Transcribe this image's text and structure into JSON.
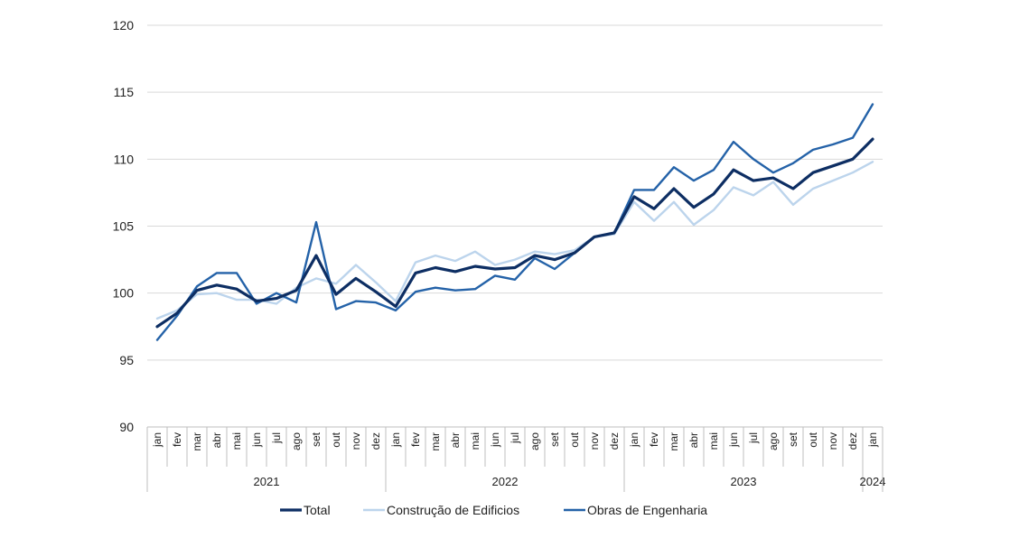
{
  "chart_data": {
    "type": "line",
    "title": "",
    "xlabel": "",
    "ylabel": "",
    "ylim": [
      90,
      120
    ],
    "yticks": [
      "90",
      "95",
      "100",
      "105",
      "110",
      "115",
      "120"
    ],
    "grid": true,
    "legend_position": "bottom",
    "categories": [
      "jan",
      "fev",
      "mar",
      "abr",
      "mai",
      "jun",
      "jul",
      "ago",
      "set",
      "out",
      "nov",
      "dez",
      "jan",
      "fev",
      "mar",
      "abr",
      "mai",
      "jun",
      "jul",
      "ago",
      "set",
      "out",
      "nov",
      "dez",
      "jan",
      "fev",
      "mar",
      "abr",
      "mai",
      "jun",
      "jul",
      "ago",
      "set",
      "out",
      "nov",
      "dez",
      "jan"
    ],
    "years": [
      {
        "label": "2021",
        "start": 0,
        "end": 11
      },
      {
        "label": "2022",
        "start": 12,
        "end": 23
      },
      {
        "label": "2023",
        "start": 24,
        "end": 35
      },
      {
        "label": "2024",
        "start": 36,
        "end": 36
      }
    ],
    "series": [
      {
        "name": "Total",
        "color": "#0d2e63",
        "values": [
          97.5,
          98.5,
          100.2,
          100.6,
          100.3,
          99.4,
          99.6,
          100.2,
          102.8,
          99.9,
          101.1,
          100.1,
          99.0,
          101.5,
          101.9,
          101.6,
          102.0,
          101.8,
          101.9,
          102.8,
          102.5,
          103.0,
          104.2,
          104.5,
          107.2,
          106.3,
          107.8,
          106.4,
          107.4,
          109.2,
          108.4,
          108.6,
          107.8,
          109.0,
          109.5,
          110.0,
          111.5
        ]
      },
      {
        "name": "Construção de Edificios",
        "color": "#bcd4ec",
        "values": [
          98.1,
          98.7,
          99.9,
          100.0,
          99.5,
          99.5,
          99.2,
          100.4,
          101.1,
          100.7,
          102.1,
          100.8,
          99.4,
          102.3,
          102.8,
          102.4,
          103.1,
          102.1,
          102.5,
          103.1,
          102.9,
          103.2,
          104.2,
          104.4,
          106.8,
          105.4,
          106.8,
          105.1,
          106.2,
          107.9,
          107.3,
          108.3,
          106.6,
          107.8,
          108.4,
          109.0,
          109.8
        ]
      },
      {
        "name": "Obras de Engenharia",
        "color": "#2462a8",
        "values": [
          96.5,
          98.3,
          100.5,
          101.5,
          101.5,
          99.2,
          100.0,
          99.3,
          105.3,
          98.8,
          99.4,
          99.3,
          98.7,
          100.1,
          100.4,
          100.2,
          100.3,
          101.3,
          101.0,
          102.6,
          101.8,
          103.0,
          104.2,
          104.5,
          107.7,
          107.7,
          109.4,
          108.4,
          109.2,
          111.3,
          110.0,
          109.0,
          109.7,
          110.7,
          111.1,
          111.6,
          114.1
        ]
      }
    ]
  }
}
